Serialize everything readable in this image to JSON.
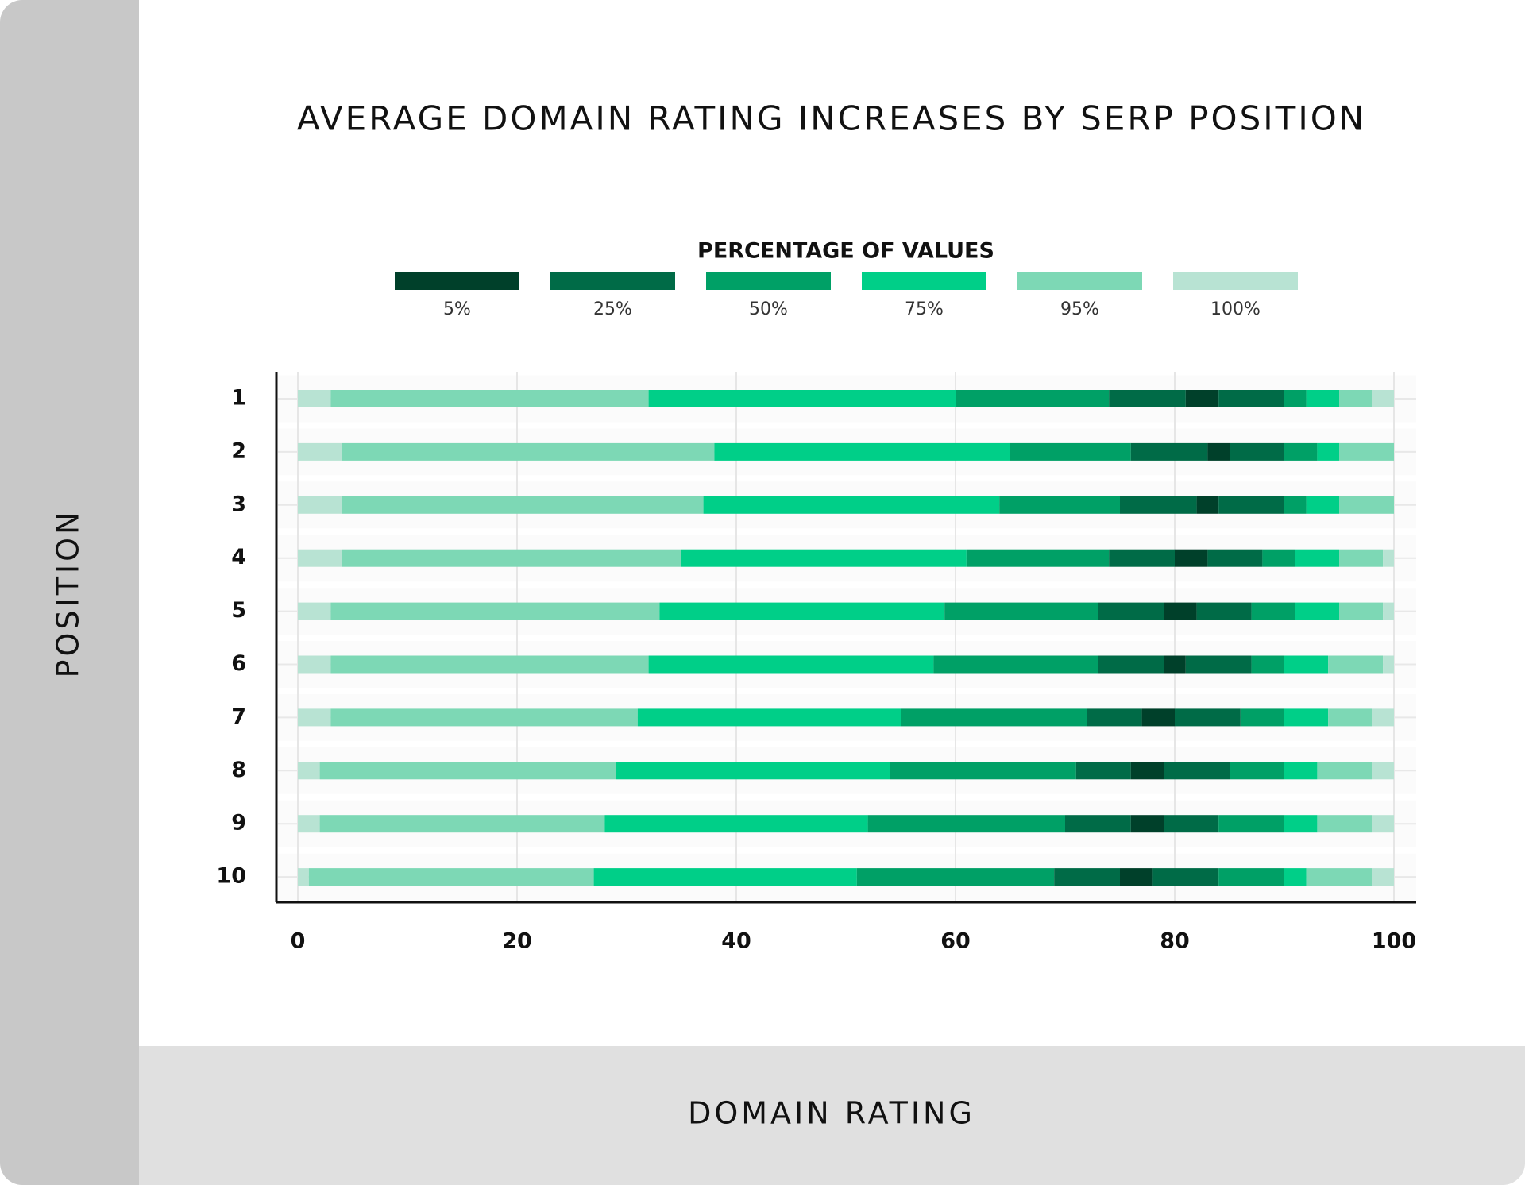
{
  "chart_data": {
    "type": "stacked_barh",
    "title": "AVERAGE DOMAIN RATING INCREASES BY SERP POSITION",
    "legend_title": "PERCENTAGE OF VALUES",
    "x_label": "DOMAIN RATING",
    "y_label": "POSITION",
    "categories": [
      "1",
      "2",
      "3",
      "4",
      "5",
      "6",
      "7",
      "8",
      "9",
      "10"
    ],
    "xlim": [
      0,
      100
    ],
    "xticks": [
      0,
      20,
      40,
      60,
      80,
      100
    ],
    "grid": true,
    "series": [
      {
        "name": "100%",
        "color": "#b8e3d3",
        "values": [
          3,
          4,
          4,
          4,
          3,
          3,
          3,
          2,
          2,
          1
        ]
      },
      {
        "name": "95%",
        "color": "#7dd8b5",
        "values": [
          29,
          34,
          33,
          31,
          30,
          29,
          28,
          27,
          26,
          26
        ]
      },
      {
        "name": "75%",
        "color": "#00cf88",
        "values": [
          28,
          27,
          27,
          26,
          26,
          26,
          24,
          25,
          24,
          24
        ]
      },
      {
        "name": "50%",
        "color": "#00a066",
        "values": [
          14,
          11,
          11,
          13,
          14,
          15,
          17,
          17,
          18,
          18
        ]
      },
      {
        "name": "25%",
        "color": "#006b47",
        "values": [
          7,
          7,
          7,
          6,
          6,
          6,
          5,
          5,
          6,
          6
        ]
      },
      {
        "name": "5%",
        "color": "#00402a",
        "values": [
          3,
          2,
          2,
          3,
          3,
          2,
          3,
          3,
          3,
          3
        ]
      },
      {
        "name": "25%",
        "color": "#006b47",
        "values": [
          6,
          5,
          6,
          5,
          5,
          6,
          6,
          6,
          5,
          6
        ]
      },
      {
        "name": "50%",
        "color": "#00a066",
        "values": [
          2,
          3,
          2,
          3,
          4,
          3,
          4,
          5,
          6,
          6
        ]
      },
      {
        "name": "75%",
        "color": "#00cf88",
        "values": [
          3,
          2,
          3,
          4,
          4,
          4,
          4,
          3,
          3,
          2
        ]
      },
      {
        "name": "95%",
        "color": "#7dd8b5",
        "values": [
          3,
          5,
          5,
          4,
          4,
          5,
          4,
          5,
          5,
          6
        ]
      },
      {
        "name": "100%",
        "color": "#b8e3d3",
        "values": [
          2,
          0,
          0,
          1,
          1,
          1,
          2,
          2,
          2,
          2
        ]
      }
    ]
  }
}
